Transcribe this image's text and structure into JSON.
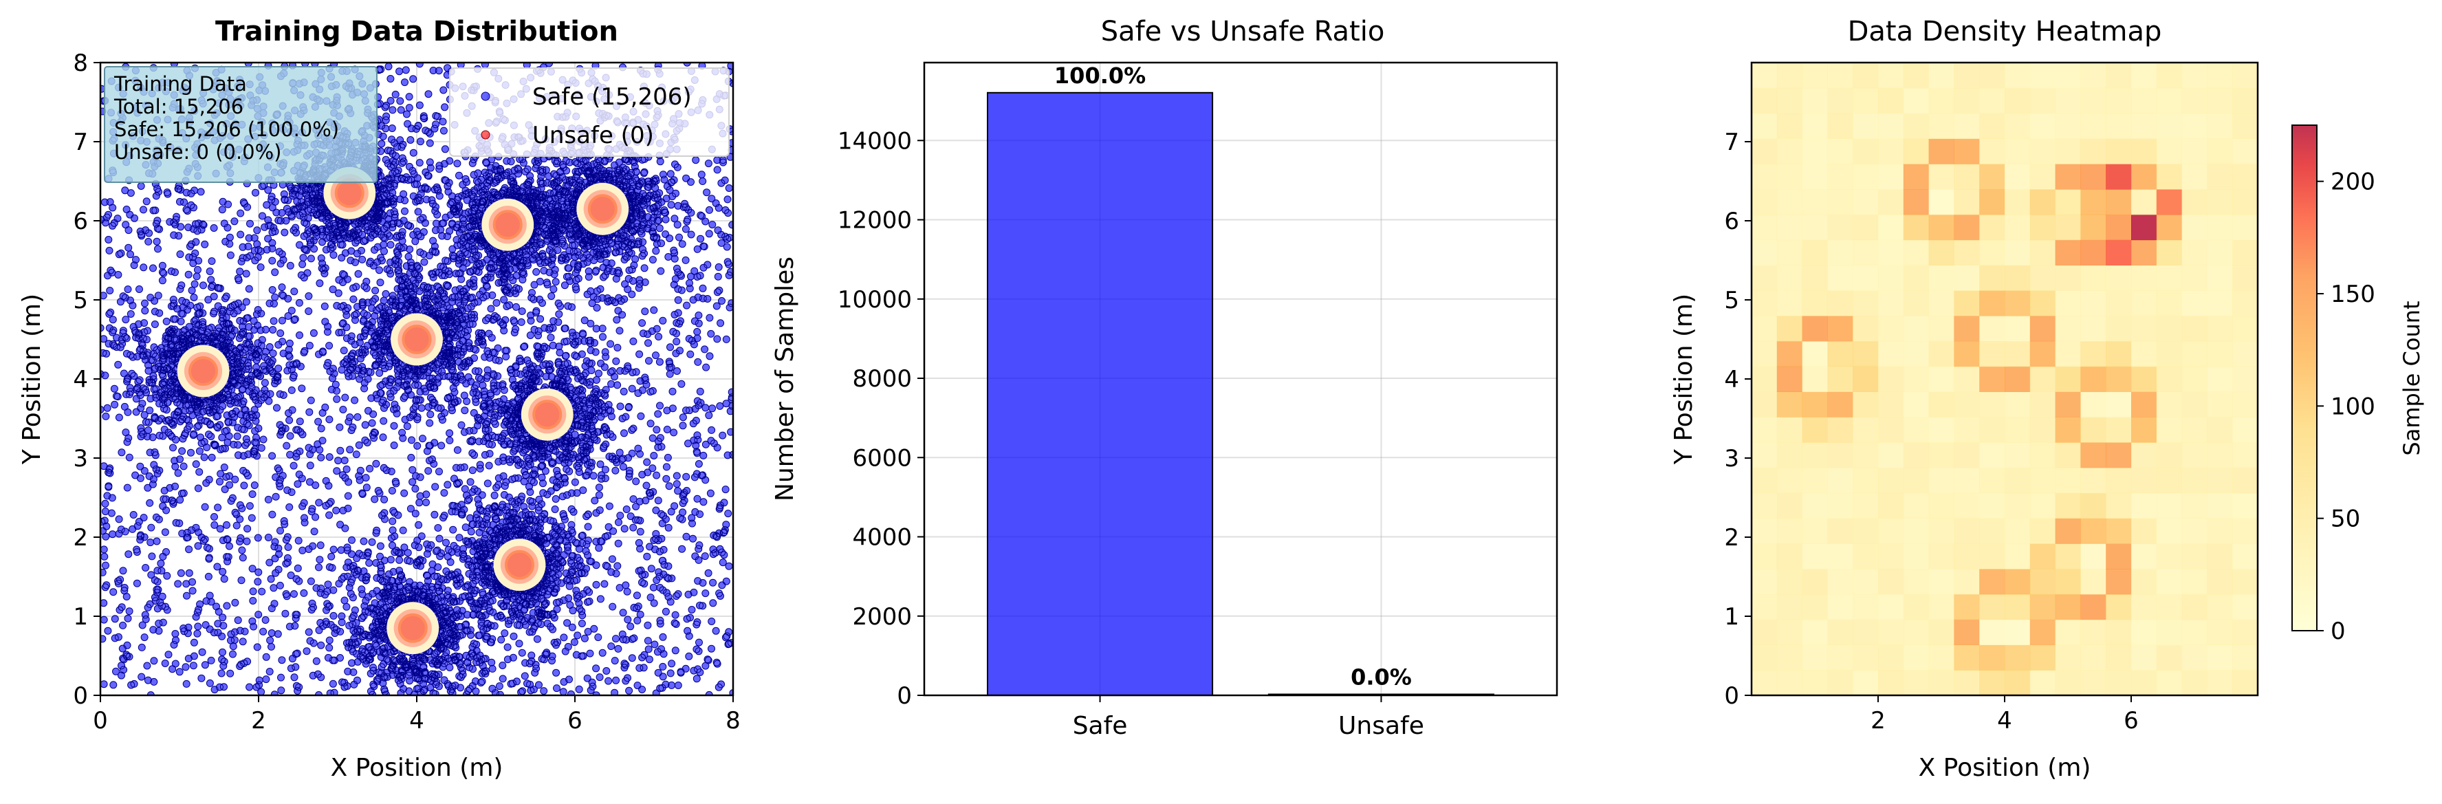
{
  "chart_data": [
    {
      "type": "scatter",
      "title": "Training Data Distribution",
      "xlabel": "X Position (m)",
      "ylabel": "Y Position (m)",
      "xlim": [
        0,
        8
      ],
      "ylim": [
        0,
        8
      ],
      "xticks": [
        "0",
        "2",
        "4",
        "6",
        "8"
      ],
      "yticks": [
        "0",
        "1",
        "2",
        "3",
        "4",
        "5",
        "6",
        "7",
        "8"
      ],
      "legend": {
        "position": "top-right",
        "entries": [
          "Safe (15,206)",
          "Unsafe (0)"
        ]
      },
      "info_box": [
        "Training Data",
        "Total: 15,206",
        "Safe: 15,206 (100.0%)",
        "Unsafe: 0 (0.0%)"
      ],
      "obstacles": [
        {
          "x": 1.3,
          "y": 4.1
        },
        {
          "x": 3.15,
          "y": 6.35
        },
        {
          "x": 5.15,
          "y": 5.95
        },
        {
          "x": 6.35,
          "y": 6.15
        },
        {
          "x": 4.0,
          "y": 4.5
        },
        {
          "x": 5.65,
          "y": 3.55
        },
        {
          "x": 5.3,
          "y": 1.65
        },
        {
          "x": 3.95,
          "y": 0.85
        }
      ],
      "series": [
        {
          "name": "Safe (15,206)",
          "count": 15206,
          "color": "#0000ff"
        },
        {
          "name": "Unsafe (0)",
          "count": 0,
          "color": "#ff0000"
        }
      ],
      "grid": true
    },
    {
      "type": "bar",
      "title": "Safe vs Unsafe Ratio",
      "ylabel": "Number of Samples",
      "categories": [
        "Safe",
        "Unsafe"
      ],
      "values": [
        15206,
        0
      ],
      "labels": [
        "100.0%",
        "0.0%"
      ],
      "colors": [
        "#0000ff",
        "#ff0000"
      ],
      "ylim": [
        0,
        15966
      ],
      "yticks": [
        "0",
        "2000",
        "4000",
        "6000",
        "8000",
        "10000",
        "12000",
        "14000"
      ],
      "grid": true
    },
    {
      "type": "heatmap",
      "title": "Data Density Heatmap",
      "xlabel": "X Position (m)",
      "ylabel": "Y Position (m)",
      "xticks": [
        "2",
        "4",
        "6"
      ],
      "yticks": [
        "0",
        "1",
        "2",
        "3",
        "4",
        "5",
        "6",
        "7"
      ],
      "colorbar_label": "Sample Count",
      "colorbar_ticks": [
        "0",
        "50",
        "100",
        "150",
        "200"
      ],
      "vmax": 225,
      "grid_size": [
        20,
        25
      ]
    }
  ]
}
